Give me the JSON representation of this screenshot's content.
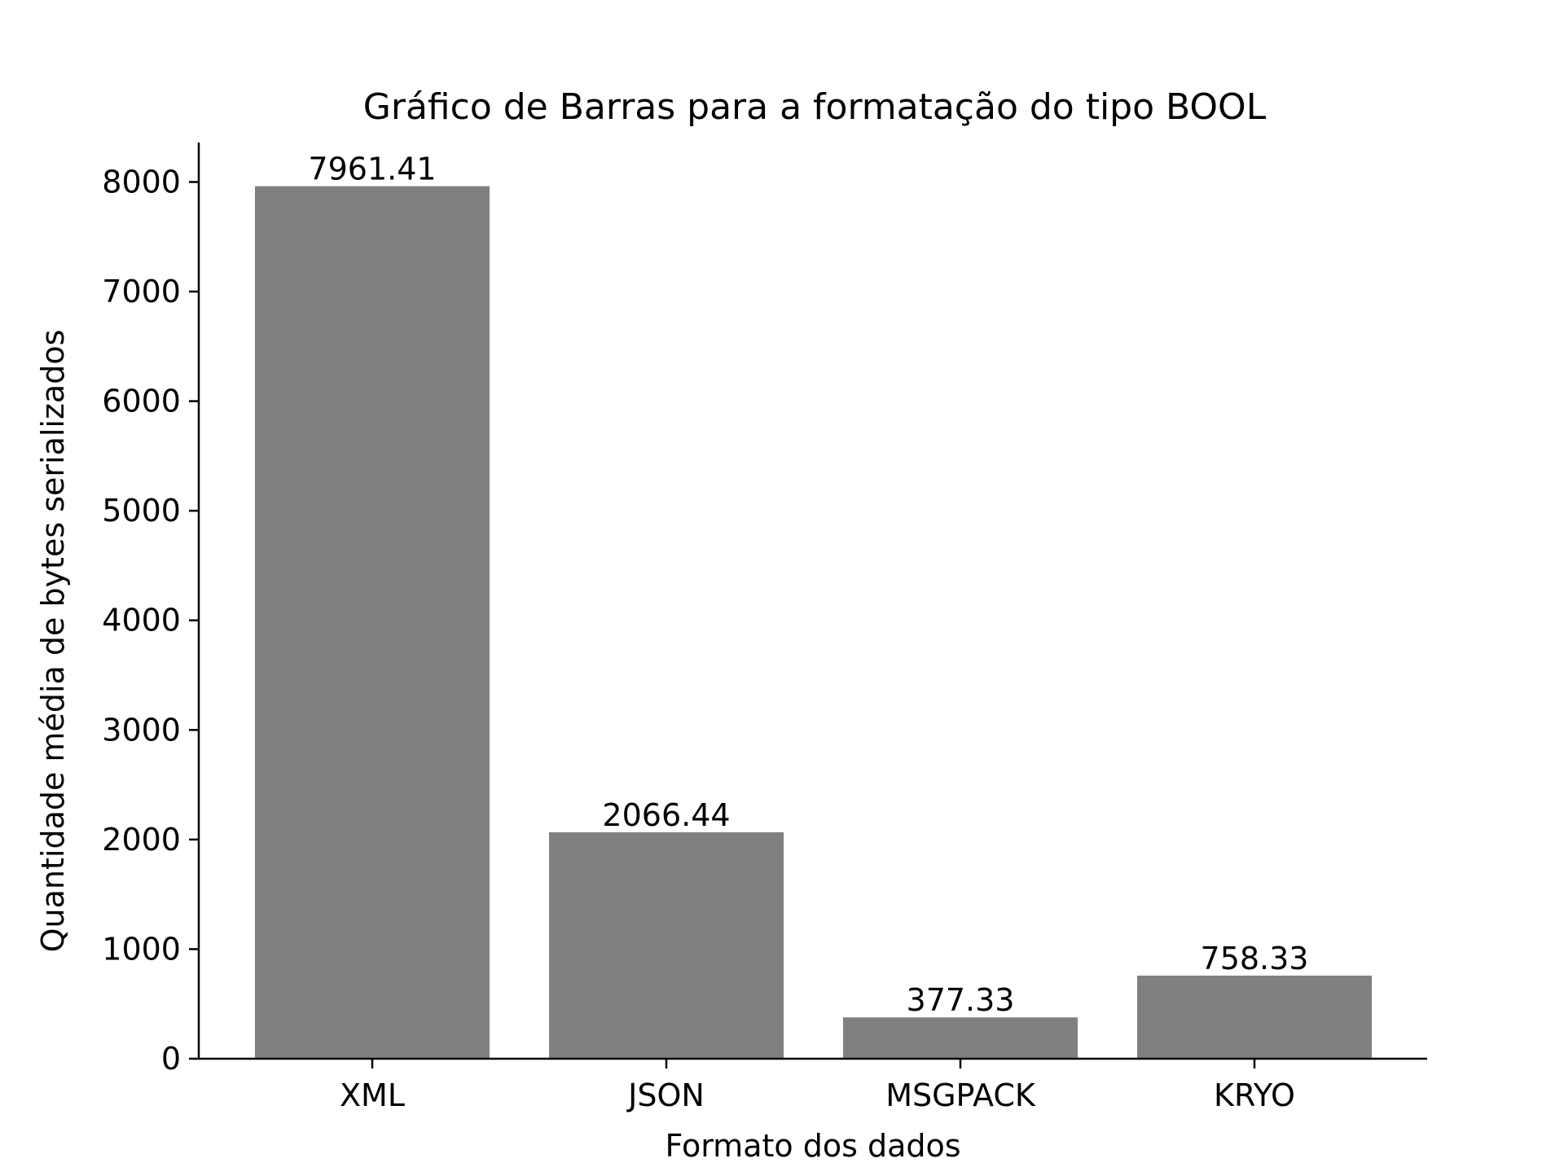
{
  "chart_data": {
    "type": "bar",
    "title": "Gráfico de Barras para a formatação do tipo BOOL",
    "xlabel": "Formato dos dados",
    "ylabel": "Quantidade média de bytes serializados",
    "categories": [
      "XML",
      "JSON",
      "MSGPACK",
      "KRYO"
    ],
    "values": [
      7961.41,
      2066.44,
      377.33,
      758.33
    ],
    "value_labels": [
      "7961.41",
      "2066.44",
      "377.33",
      "758.33"
    ],
    "y_ticks": [
      0,
      1000,
      2000,
      3000,
      4000,
      5000,
      6000,
      7000,
      8000
    ],
    "ylim": [
      0,
      8360
    ],
    "grid": false,
    "legend": "none",
    "bar_color": "#808080",
    "axis_color": "#000000"
  }
}
